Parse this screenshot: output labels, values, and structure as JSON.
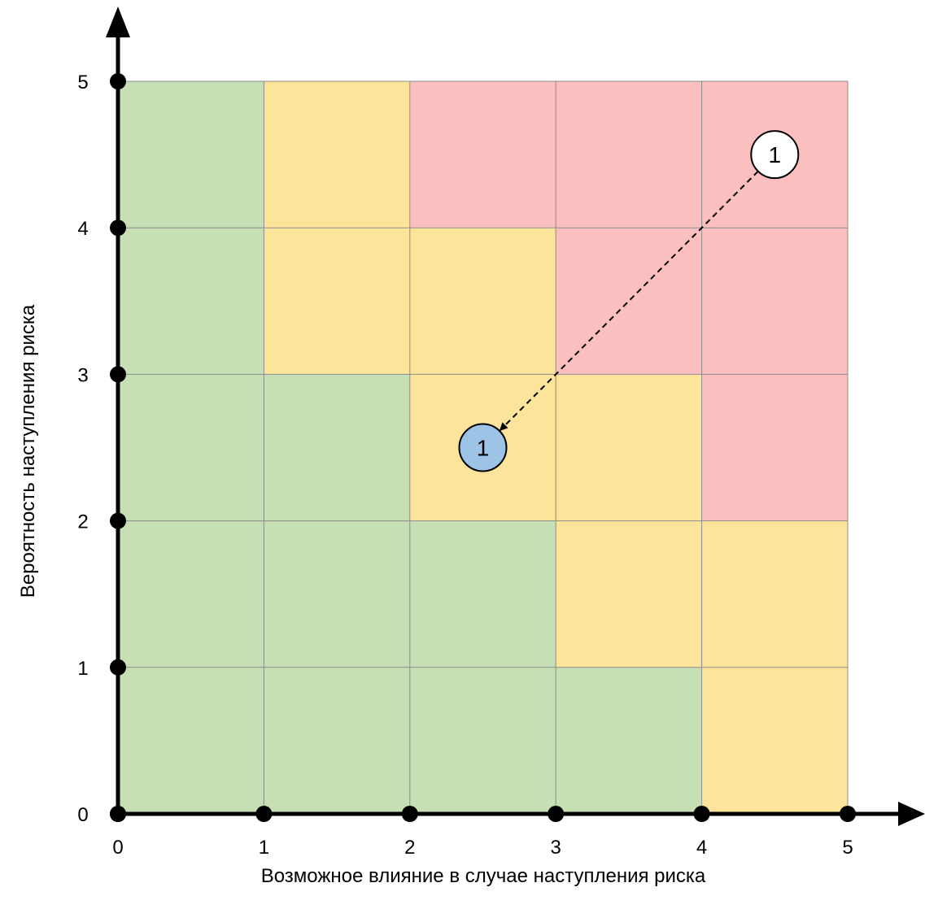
{
  "chart_data": {
    "type": "heatmap",
    "xlabel": "Возможное влияние в случае наступления риска",
    "ylabel": "Вероятность наступления риска",
    "xlim": [
      0,
      5
    ],
    "ylim": [
      0,
      5
    ],
    "x_ticks": [
      "0",
      "1",
      "2",
      "3",
      "4",
      "5"
    ],
    "y_ticks": [
      "0",
      "1",
      "2",
      "3",
      "4",
      "5"
    ],
    "grid": true,
    "colors": {
      "green": "#c6dfb4",
      "yellow": "#fde49b",
      "red": "#fbbfc0",
      "gridline": "#8c8c8c",
      "axis": "#000000",
      "marker_after_fill": "#9dc3e6",
      "marker_before_fill": "#ffffff"
    },
    "cells": [
      [
        "green",
        "green",
        "green",
        "green",
        "yellow"
      ],
      [
        "green",
        "green",
        "green",
        "yellow",
        "yellow"
      ],
      [
        "green",
        "green",
        "yellow",
        "yellow",
        "red"
      ],
      [
        "green",
        "yellow",
        "yellow",
        "red",
        "red"
      ],
      [
        "green",
        "yellow",
        "red",
        "red",
        "red"
      ]
    ],
    "markers": [
      {
        "label": "1",
        "x": 4.5,
        "y": 4.5,
        "state": "before"
      },
      {
        "label": "1",
        "x": 2.5,
        "y": 2.5,
        "state": "after"
      }
    ],
    "arrow": {
      "from": 0,
      "to": 1,
      "style": "dashed"
    }
  }
}
